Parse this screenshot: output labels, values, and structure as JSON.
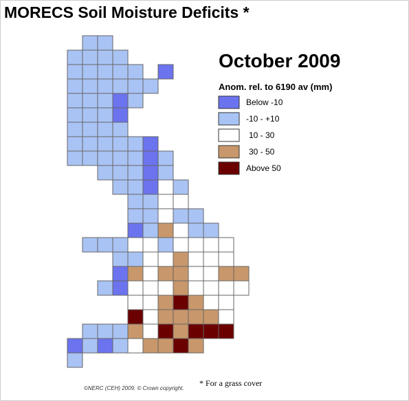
{
  "header": {
    "title": "MORECS Soil Moisture Deficits *"
  },
  "map": {
    "period": "October 2009",
    "legend": {
      "title": "Anom. rel. to 6190 av (mm)",
      "items": [
        {
          "label": "Below -10",
          "color": "#6b73ee"
        },
        {
          "label": "-10 - +10",
          "color": "#a9c3f4"
        },
        {
          "label": "10 - 30",
          "color": "#ffffff"
        },
        {
          "label": "30 - 50",
          "color": "#c8976b"
        },
        {
          "label": "Above 50",
          "color": "#6b0000"
        }
      ]
    }
  },
  "footnote": "* For a grass cover",
  "copyright": "©NERC (CEH) 2009. © Crown copyright."
}
